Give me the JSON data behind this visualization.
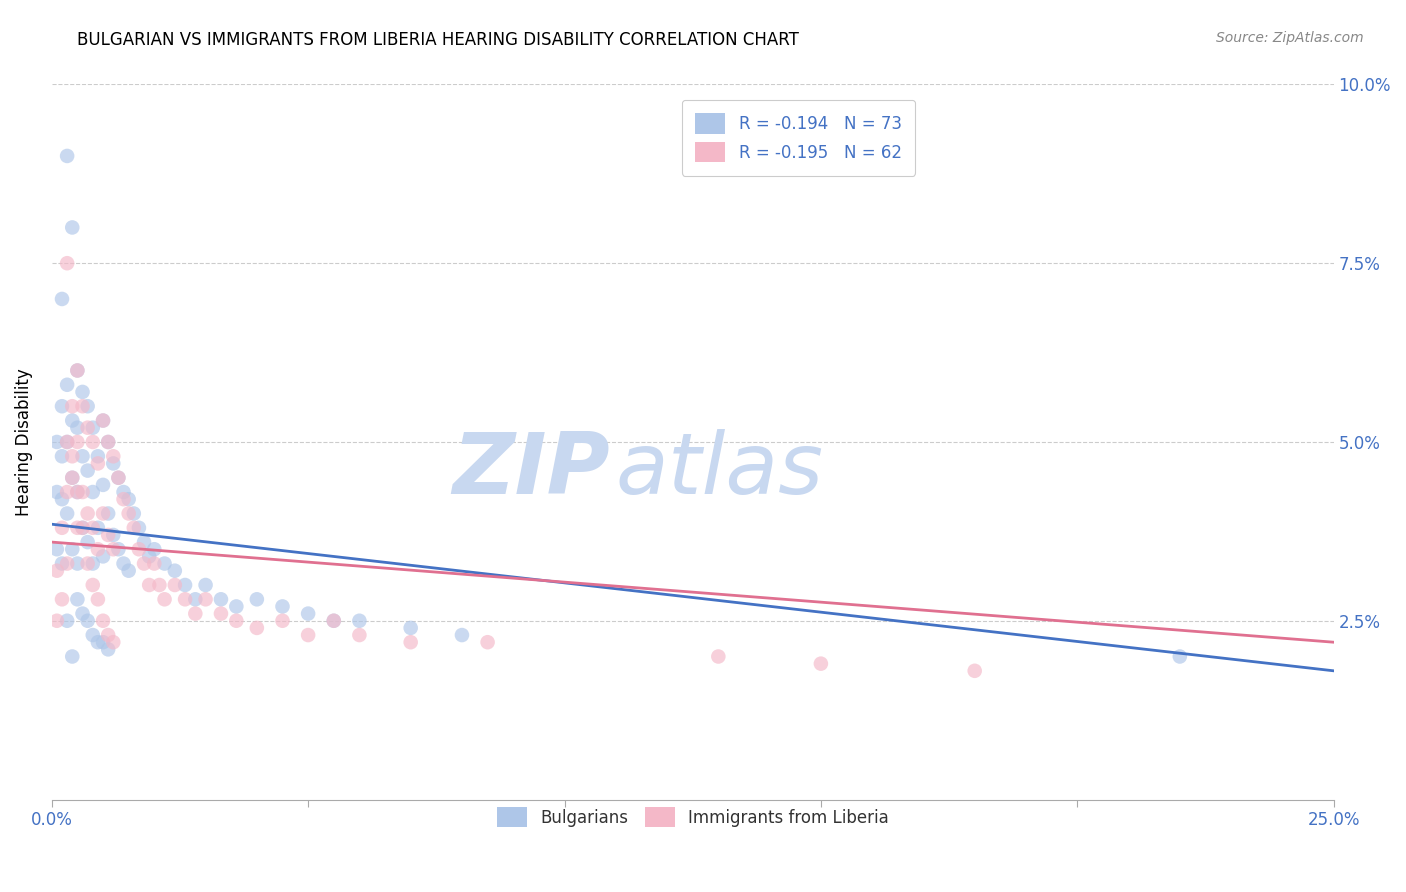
{
  "title": "BULGARIAN VS IMMIGRANTS FROM LIBERIA HEARING DISABILITY CORRELATION CHART",
  "source": "Source: ZipAtlas.com",
  "ylabel": "Hearing Disability",
  "xlim": [
    0.0,
    0.25
  ],
  "ylim": [
    0.0,
    0.1
  ],
  "xticks": [
    0.0,
    0.05,
    0.1,
    0.15,
    0.2,
    0.25
  ],
  "xticklabels": [
    "0.0%",
    "",
    "",
    "",
    "",
    "25.0%"
  ],
  "yticks": [
    0.0,
    0.025,
    0.05,
    0.075,
    0.1
  ],
  "yticklabels": [
    "",
    "2.5%",
    "5.0%",
    "7.5%",
    "10.0%"
  ],
  "legend_entries": [
    {
      "label_r": "R = -0.194",
      "label_n": "N = 73",
      "color": "#aec6e8"
    },
    {
      "label_r": "R = -0.195",
      "label_n": "N = 62",
      "color": "#f4b8c8"
    }
  ],
  "bulgarian_color": "#aec6e8",
  "liberia_color": "#f4b8c8",
  "trendline_bulgarian_color": "#4472c4",
  "trendline_liberia_color": "#e07090",
  "scatter_alpha": 0.65,
  "scatter_size": 110,
  "bulgarian_x": [
    0.001,
    0.001,
    0.001,
    0.002,
    0.002,
    0.002,
    0.002,
    0.003,
    0.003,
    0.003,
    0.004,
    0.004,
    0.004,
    0.005,
    0.005,
    0.005,
    0.005,
    0.006,
    0.006,
    0.006,
    0.007,
    0.007,
    0.007,
    0.008,
    0.008,
    0.008,
    0.009,
    0.009,
    0.01,
    0.01,
    0.01,
    0.011,
    0.011,
    0.012,
    0.012,
    0.013,
    0.013,
    0.014,
    0.014,
    0.015,
    0.015,
    0.016,
    0.017,
    0.018,
    0.019,
    0.02,
    0.022,
    0.024,
    0.026,
    0.028,
    0.03,
    0.033,
    0.036,
    0.04,
    0.045,
    0.05,
    0.055,
    0.06,
    0.07,
    0.08,
    0.005,
    0.006,
    0.007,
    0.008,
    0.009,
    0.01,
    0.011,
    0.003,
    0.004,
    0.002,
    0.22,
    0.003,
    0.004
  ],
  "bulgarian_y": [
    0.05,
    0.043,
    0.035,
    0.055,
    0.048,
    0.042,
    0.033,
    0.058,
    0.05,
    0.04,
    0.053,
    0.045,
    0.035,
    0.06,
    0.052,
    0.043,
    0.033,
    0.057,
    0.048,
    0.038,
    0.055,
    0.046,
    0.036,
    0.052,
    0.043,
    0.033,
    0.048,
    0.038,
    0.053,
    0.044,
    0.034,
    0.05,
    0.04,
    0.047,
    0.037,
    0.045,
    0.035,
    0.043,
    0.033,
    0.042,
    0.032,
    0.04,
    0.038,
    0.036,
    0.034,
    0.035,
    0.033,
    0.032,
    0.03,
    0.028,
    0.03,
    0.028,
    0.027,
    0.028,
    0.027,
    0.026,
    0.025,
    0.025,
    0.024,
    0.023,
    0.028,
    0.026,
    0.025,
    0.023,
    0.022,
    0.022,
    0.021,
    0.09,
    0.08,
    0.07,
    0.02,
    0.025,
    0.02
  ],
  "liberia_x": [
    0.001,
    0.001,
    0.002,
    0.002,
    0.003,
    0.003,
    0.003,
    0.004,
    0.004,
    0.005,
    0.005,
    0.005,
    0.006,
    0.006,
    0.007,
    0.007,
    0.008,
    0.008,
    0.009,
    0.009,
    0.01,
    0.01,
    0.011,
    0.011,
    0.012,
    0.012,
    0.013,
    0.014,
    0.015,
    0.016,
    0.017,
    0.018,
    0.019,
    0.02,
    0.021,
    0.022,
    0.024,
    0.026,
    0.028,
    0.03,
    0.033,
    0.036,
    0.04,
    0.045,
    0.05,
    0.055,
    0.06,
    0.07,
    0.085,
    0.13,
    0.15,
    0.18,
    0.004,
    0.005,
    0.006,
    0.007,
    0.008,
    0.009,
    0.01,
    0.011,
    0.012,
    0.003
  ],
  "liberia_y": [
    0.032,
    0.025,
    0.038,
    0.028,
    0.05,
    0.043,
    0.033,
    0.055,
    0.045,
    0.06,
    0.05,
    0.038,
    0.055,
    0.043,
    0.052,
    0.04,
    0.05,
    0.038,
    0.047,
    0.035,
    0.053,
    0.04,
    0.05,
    0.037,
    0.048,
    0.035,
    0.045,
    0.042,
    0.04,
    0.038,
    0.035,
    0.033,
    0.03,
    0.033,
    0.03,
    0.028,
    0.03,
    0.028,
    0.026,
    0.028,
    0.026,
    0.025,
    0.024,
    0.025,
    0.023,
    0.025,
    0.023,
    0.022,
    0.022,
    0.02,
    0.019,
    0.018,
    0.048,
    0.043,
    0.038,
    0.033,
    0.03,
    0.028,
    0.025,
    0.023,
    0.022,
    0.075
  ],
  "trendline_bg_x0": 0.0,
  "trendline_bg_y0": 0.0385,
  "trendline_bg_x1": 0.25,
  "trendline_bg_y1": 0.018,
  "trendline_lib_x0": 0.0,
  "trendline_lib_y0": 0.036,
  "trendline_lib_x1": 0.25,
  "trendline_lib_y1": 0.022
}
